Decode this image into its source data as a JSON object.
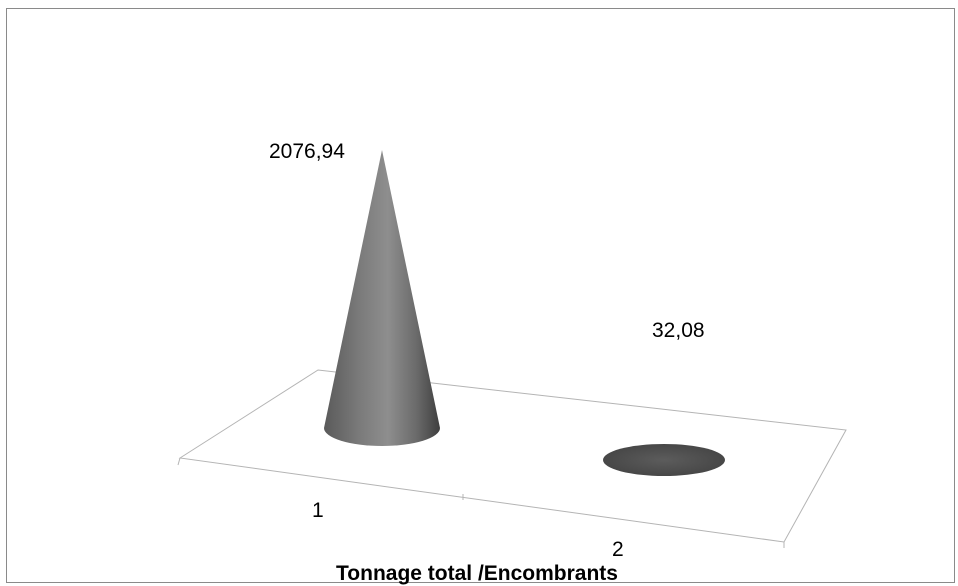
{
  "chart_data": {
    "type": "bar",
    "subtype": "3d-cone",
    "title": "Tonnage total /Encombrants",
    "categories": [
      "1",
      "2"
    ],
    "values": [
      2076.94,
      32.08
    ],
    "data_labels": [
      "2076,94",
      "32,08"
    ],
    "xlabel": "",
    "ylabel": "",
    "grid": false,
    "legend": "none",
    "bar_color": "#5f5f5f"
  }
}
